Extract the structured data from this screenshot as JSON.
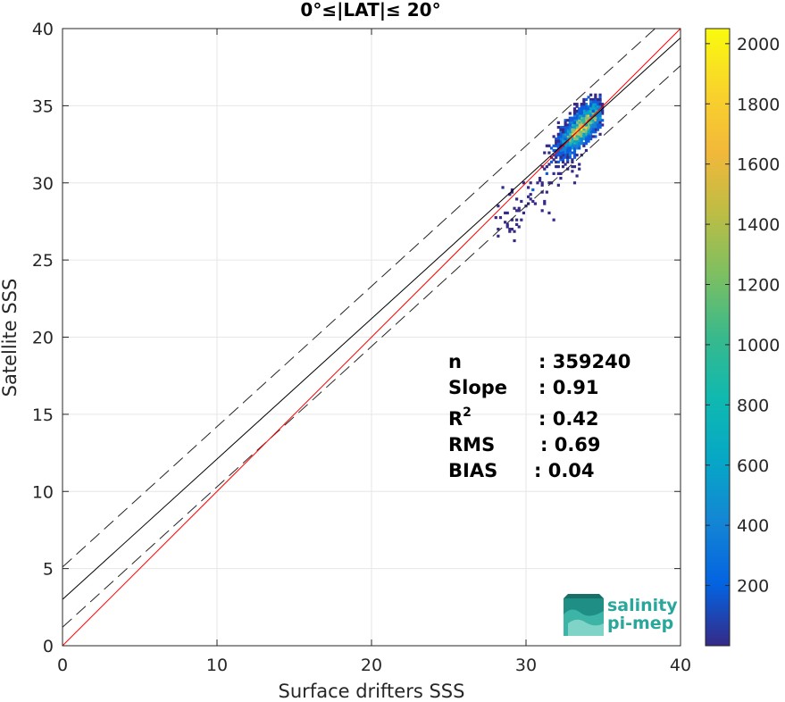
{
  "chart_data": {
    "type": "heatmap",
    "title": "0°≤|LAT|≤ 20°",
    "xlabel": "Surface drifters SSS",
    "ylabel": "Satellite SSS",
    "xlim": [
      0,
      40
    ],
    "ylim": [
      0,
      40
    ],
    "xticks": [
      "0",
      "10",
      "20",
      "30",
      "40"
    ],
    "yticks": [
      "0",
      "5",
      "10",
      "15",
      "20",
      "25",
      "30",
      "35",
      "40"
    ],
    "grid": true,
    "density": {
      "center": [
        33.6,
        33.6
      ],
      "extent_x": [
        27.9,
        34.9
      ],
      "extent_y": [
        25.1,
        35.8
      ],
      "max_count": 2050
    },
    "lines": {
      "identity": {
        "slope": 1.0,
        "intercept": 0.0,
        "color": "#ff0000"
      },
      "fit": {
        "slope": 0.91,
        "intercept": 3.0,
        "color": "#000000"
      },
      "upper_bound": {
        "slope": 0.91,
        "intercept": 5.1,
        "style": "dashed"
      },
      "lower_bound": {
        "slope": 0.91,
        "intercept": 1.2,
        "style": "dashed"
      }
    },
    "colorbar": {
      "range": [
        0,
        2050
      ],
      "ticks": [
        "200",
        "400",
        "600",
        "800",
        "1000",
        "1200",
        "1400",
        "1600",
        "1800",
        "2000"
      ],
      "colormap": "parula"
    },
    "stats": [
      {
        "label": "n",
        "value": ": 359240"
      },
      {
        "label": "Slope",
        "value": ": 0.91"
      },
      {
        "label": "R",
        "sup": "2",
        "value": ": 0.42"
      },
      {
        "label": "RMS",
        "value": ": 0.69"
      },
      {
        "label": "BIAS",
        "value": ": 0.04"
      }
    ]
  },
  "logo": {
    "line1": "salinity",
    "line2": "pi-mep",
    "color": "#2aa79b"
  }
}
